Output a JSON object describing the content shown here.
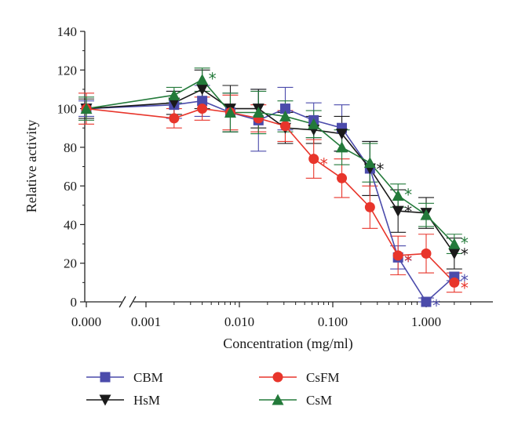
{
  "chart_data": {
    "type": "line",
    "xlabel": "Concentration (mg/ml)",
    "ylabel": "Relative activity",
    "xscale": "log with broken axis from 0.000",
    "x_tick_labels": [
      "0.000",
      "0.001",
      "0.010",
      "0.100",
      "1.000"
    ],
    "x_tick_values": [
      0,
      0.001,
      0.01,
      0.1,
      1
    ],
    "ylim": [
      0,
      140
    ],
    "y_ticks": [
      0,
      20,
      40,
      60,
      80,
      100,
      120,
      140
    ],
    "grid": false,
    "legend_position": "bottom",
    "significance_marker": "*",
    "series": [
      {
        "name": "CBM",
        "color": "#4b4bab",
        "marker": "square",
        "x": [
          0,
          0.002,
          0.004,
          0.008,
          0.016,
          0.031,
          0.0625,
          0.125,
          0.25,
          0.5,
          1,
          2
        ],
        "y": [
          100,
          102,
          104,
          98,
          94,
          100,
          94,
          90,
          69,
          23,
          0,
          13
        ],
        "err": [
          4,
          7,
          8,
          10,
          16,
          11,
          9,
          12,
          14,
          6,
          2,
          2
        ],
        "significant": [
          false,
          false,
          false,
          false,
          false,
          false,
          false,
          false,
          false,
          true,
          true,
          true
        ]
      },
      {
        "name": "HsM",
        "color": "#1a1a1a",
        "marker": "triangle-down",
        "x": [
          0,
          0.002,
          0.004,
          0.008,
          0.016,
          0.031,
          0.0625,
          0.125,
          0.25,
          0.5,
          1,
          2
        ],
        "y": [
          100,
          103,
          110,
          100,
          100,
          90,
          89,
          87,
          69,
          47,
          46,
          25
        ],
        "err": [
          5,
          6,
          10,
          12,
          10,
          8,
          7,
          9,
          14,
          11,
          8,
          8
        ],
        "significant": [
          false,
          false,
          false,
          false,
          false,
          false,
          false,
          false,
          true,
          true,
          false,
          true
        ]
      },
      {
        "name": "CsFM",
        "color": "#e8352b",
        "marker": "circle",
        "x": [
          0,
          0.002,
          0.004,
          0.008,
          0.016,
          0.031,
          0.0625,
          0.125,
          0.25,
          0.5,
          1,
          2
        ],
        "y": [
          100,
          95,
          100,
          98,
          95,
          91,
          74,
          64,
          49,
          24,
          25,
          10
        ],
        "err": [
          8,
          5,
          6,
          9,
          7,
          8,
          10,
          10,
          11,
          10,
          10,
          5
        ],
        "significant": [
          false,
          false,
          false,
          false,
          false,
          false,
          true,
          false,
          false,
          true,
          false,
          true
        ]
      },
      {
        "name": "CsM",
        "color": "#237a3a",
        "marker": "triangle-up",
        "x": [
          0,
          0.002,
          0.004,
          0.008,
          0.016,
          0.031,
          0.0625,
          0.125,
          0.25,
          0.5,
          1,
          2
        ],
        "y": [
          100,
          107,
          115,
          98,
          98,
          96,
          92,
          80,
          72,
          55,
          45,
          30
        ],
        "err": [
          6,
          4,
          6,
          10,
          11,
          8,
          7,
          9,
          10,
          6,
          6,
          5
        ],
        "significant": [
          false,
          false,
          true,
          false,
          false,
          false,
          false,
          false,
          false,
          true,
          false,
          true
        ]
      }
    ]
  }
}
